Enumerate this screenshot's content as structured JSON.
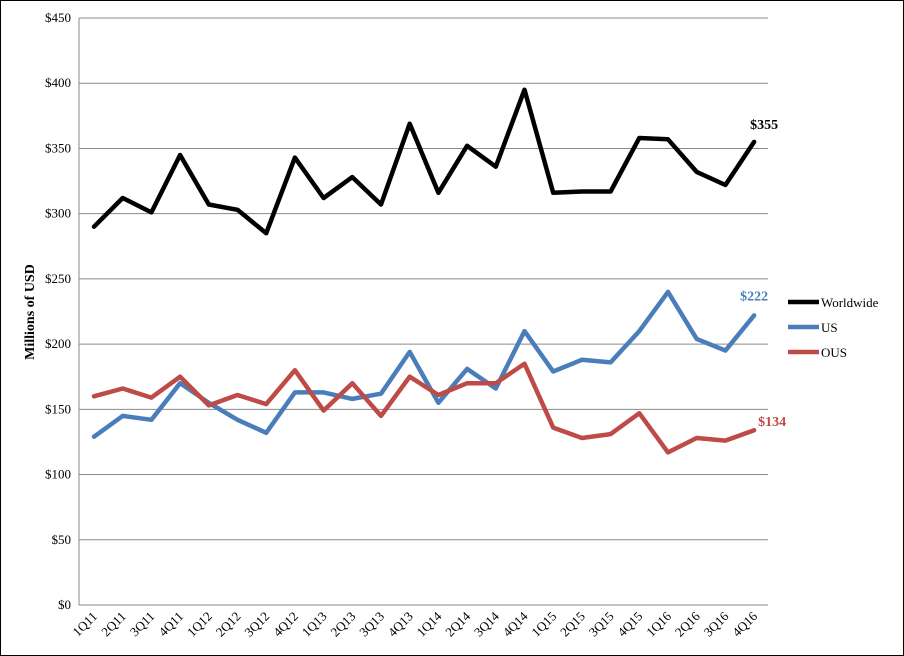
{
  "chart_data": {
    "type": "line",
    "ylabel": "Millions of USD",
    "ylim": [
      0,
      450
    ],
    "yticks": [
      0,
      50,
      100,
      150,
      200,
      250,
      300,
      350,
      400,
      450
    ],
    "ytick_labels": [
      "$0",
      "$50",
      "$100",
      "$150",
      "$200",
      "$250",
      "$300",
      "$350",
      "$400",
      "$450"
    ],
    "grid": "horizontal",
    "legend_position": "right",
    "categories": [
      "1Q11",
      "2Q11",
      "3Q11",
      "4Q11",
      "1Q12",
      "2Q12",
      "3Q12",
      "4Q12",
      "1Q13",
      "2Q13",
      "3Q13",
      "4Q13",
      "1Q14",
      "2Q14",
      "3Q14",
      "4Q14",
      "1Q15",
      "2Q15",
      "3Q15",
      "4Q15",
      "1Q16",
      "2Q16",
      "3Q16",
      "4Q16"
    ],
    "series": [
      {
        "name": "Worldwide",
        "color": "#000000",
        "values": [
          290,
          312,
          301,
          345,
          307,
          303,
          285,
          343,
          312,
          328,
          307,
          369,
          316,
          352,
          336,
          395,
          316,
          317,
          317,
          358,
          357,
          332,
          322,
          355
        ],
        "end_label": "$355"
      },
      {
        "name": "US",
        "color": "#4a7ebb",
        "values": [
          129,
          145,
          142,
          170,
          155,
          142,
          132,
          163,
          163,
          158,
          162,
          194,
          155,
          181,
          166,
          210,
          179,
          188,
          186,
          210,
          240,
          204,
          195,
          222
        ],
        "end_label": "$222"
      },
      {
        "name": "OUS",
        "color": "#be4b48",
        "values": [
          160,
          166,
          159,
          175,
          153,
          161,
          154,
          180,
          149,
          170,
          145,
          175,
          161,
          170,
          170,
          185,
          136,
          128,
          131,
          147,
          117,
          128,
          126,
          134
        ],
        "end_label": "$134"
      }
    ]
  }
}
